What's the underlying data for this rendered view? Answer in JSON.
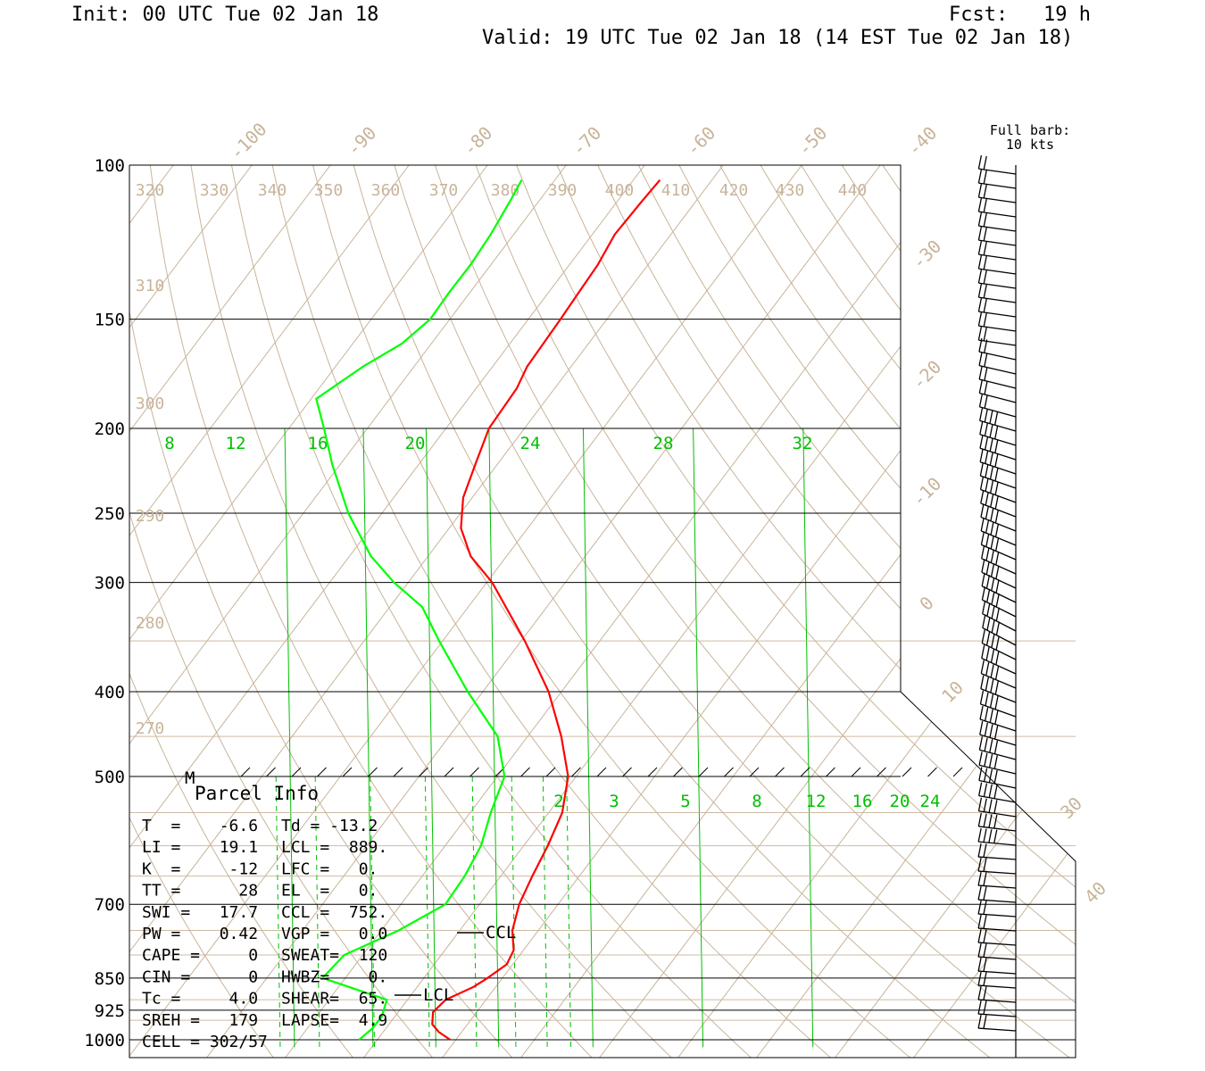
{
  "header": {
    "init": "Init: 00 UTC Tue 02 Jan 18",
    "fcst": "Fcst:   19 h",
    "valid": "Valid: 19 UTC Tue 02 Jan 18 (14 EST Tue 02 Jan 18)"
  },
  "barb_legend": {
    "line1": "Full barb:",
    "line2": "10 kts"
  },
  "colors": {
    "temperature": "#ff0000",
    "dewpoint": "#00ff00",
    "mixing_ratio": "#00c000",
    "isotherm": "#c8b49a",
    "frame": "#000000"
  },
  "chart_data": {
    "type": "line",
    "title": "",
    "yaxis": {
      "label": "",
      "scale": "log",
      "ylim": [
        1000,
        100
      ],
      "tick_labels": [
        "100",
        "150",
        "200",
        "250",
        "300",
        "400",
        "500",
        "700",
        "850",
        "925",
        "1000"
      ]
    },
    "isotherm_labels": [
      "-100",
      "-90",
      "-80",
      "-70",
      "-60",
      "-50",
      "-40",
      "-30",
      "-20",
      "-10",
      "0",
      "10",
      "30",
      "40"
    ],
    "theta_labels": [
      "320",
      "330",
      "340",
      "350",
      "360",
      "370",
      "380",
      "390",
      "400",
      "410",
      "420",
      "430",
      "440",
      "310",
      "300",
      "290",
      "280",
      "270"
    ],
    "mixing_ratio_labels_upper": [
      "8",
      "12",
      "16",
      "20",
      "24",
      "28",
      "32"
    ],
    "mixing_ratio_labels_lower": [
      "2",
      "3",
      "5",
      "8",
      "12",
      "16",
      "20",
      "24"
    ],
    "series": [
      {
        "points": [
          [
            1000,
            1.0
          ],
          [
            980,
            -1.2
          ],
          [
            960,
            -2.8
          ],
          [
            930,
            -3.9
          ],
          [
            900,
            -3.5
          ],
          [
            870,
            -1.2
          ],
          [
            850,
            -0.3
          ],
          [
            820,
            0.8
          ],
          [
            790,
            0.3
          ],
          [
            750,
            -1.8
          ],
          [
            700,
            -3.5
          ],
          [
            650,
            -4.6
          ],
          [
            600,
            -5.6
          ],
          [
            550,
            -7.0
          ],
          [
            500,
            -9.8
          ],
          [
            450,
            -14.6
          ],
          [
            400,
            -20.6
          ],
          [
            350,
            -28.6
          ],
          [
            300,
            -38.5
          ],
          [
            280,
            -43.8
          ],
          [
            260,
            -47.8
          ],
          [
            240,
            -50.5
          ],
          [
            220,
            -52.2
          ],
          [
            200,
            -54.0
          ],
          [
            180,
            -54.4
          ],
          [
            170,
            -55.2
          ],
          [
            150,
            -55.6
          ],
          [
            140,
            -55.9
          ],
          [
            130,
            -56.2
          ],
          [
            120,
            -57.0
          ],
          [
            110,
            -56.8
          ],
          [
            104,
            -56.6
          ]
        ]
      },
      {
        "points": [
          [
            1000,
            -10.6
          ],
          [
            970,
            -10.0
          ],
          [
            940,
            -10.0
          ],
          [
            900,
            -11.0
          ],
          [
            850,
            -21.3
          ],
          [
            800,
            -20.8
          ],
          [
            750,
            -16.3
          ],
          [
            700,
            -12.9
          ],
          [
            650,
            -13.2
          ],
          [
            600,
            -14.1
          ],
          [
            550,
            -16.1
          ],
          [
            500,
            -17.9
          ],
          [
            450,
            -22.7
          ],
          [
            400,
            -30.9
          ],
          [
            350,
            -39.5
          ],
          [
            320,
            -45.0
          ],
          [
            300,
            -51.0
          ],
          [
            280,
            -56.5
          ],
          [
            250,
            -63.6
          ],
          [
            220,
            -70.4
          ],
          [
            200,
            -75.0
          ],
          [
            185,
            -78.9
          ],
          [
            170,
            -76.1
          ],
          [
            160,
            -73.4
          ],
          [
            150,
            -72.2
          ],
          [
            140,
            -72.4
          ],
          [
            130,
            -72.4
          ],
          [
            120,
            -72.8
          ],
          [
            110,
            -73.6
          ],
          [
            104,
            -74.2
          ]
        ]
      }
    ],
    "wind_barb_levels": [
      1000,
      700,
      100
    ]
  },
  "parcel_info": {
    "heading": "Parcel Info",
    "marker": "M",
    "rows": [
      [
        "T  =    -6.6",
        "Td = -13.2"
      ],
      [
        "LI =    19.1",
        "LCL =  889."
      ],
      [
        "K  =     -12",
        "LFC =   0."
      ],
      [
        "TT =      28",
        "EL  =   0."
      ],
      [
        "SWI =   17.7",
        "CCL =  752."
      ],
      [
        "PW =    0.42",
        "VGP =   0.0"
      ],
      [
        "CAPE =     0",
        "SWEAT=  120"
      ],
      [
        "CIN =      0",
        "HWBZ=    0."
      ],
      [
        "Tc =     4.0",
        "SHEAR=  65."
      ],
      [
        "SREH =   179",
        "LAPSE=  4.9"
      ],
      [
        "CELL = 302/57",
        ""
      ]
    ]
  },
  "markers": {
    "ccl": "CCL",
    "lcl": "LCL"
  }
}
